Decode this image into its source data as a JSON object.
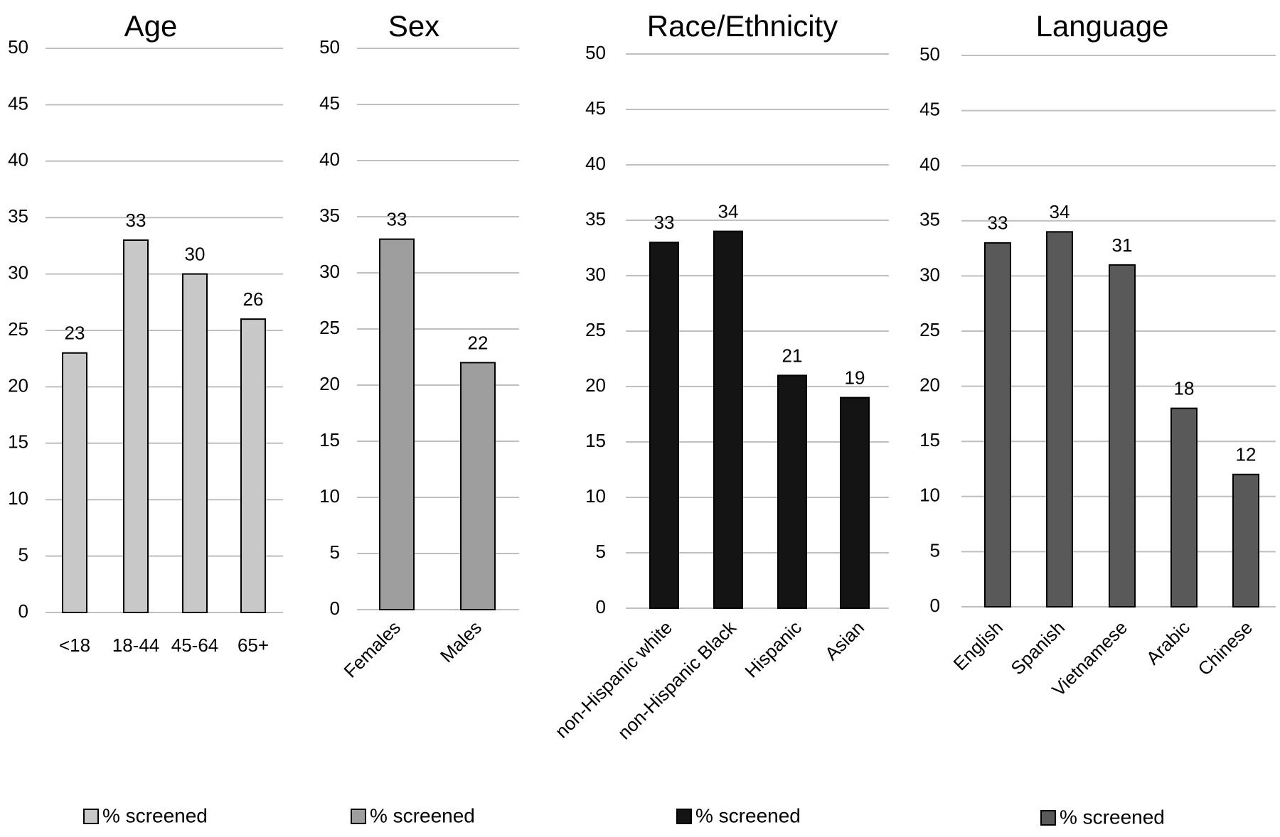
{
  "chart_data": [
    {
      "type": "bar",
      "title": "Age",
      "categories": [
        "<18",
        "18-44",
        "45-64",
        "65+"
      ],
      "series": [
        {
          "name": "% screened",
          "values": [
            23,
            33,
            30,
            26
          ],
          "color": "#c8c8c8"
        }
      ],
      "ylim": [
        0,
        50
      ],
      "yticks": [
        0,
        5,
        10,
        15,
        20,
        25,
        30,
        35,
        40,
        45,
        50
      ],
      "grid": true,
      "legend": "bottom"
    },
    {
      "type": "bar",
      "title": "Sex",
      "categories": [
        "Females",
        "Males"
      ],
      "series": [
        {
          "name": "% screened",
          "values": [
            33,
            22
          ],
          "color": "#9e9e9e"
        }
      ],
      "ylim": [
        0,
        50
      ],
      "yticks": [
        0,
        5,
        10,
        15,
        20,
        25,
        30,
        35,
        40,
        45,
        50
      ],
      "grid": true,
      "legend": "bottom"
    },
    {
      "type": "bar",
      "title": "Race/Ethnicity",
      "categories": [
        "non-Hispanic white",
        "non-Hispanic Black",
        "Hispanic",
        "Asian"
      ],
      "series": [
        {
          "name": "% screened",
          "values": [
            33,
            34,
            21,
            19
          ],
          "color": "#141414"
        }
      ],
      "ylim": [
        0,
        50
      ],
      "yticks": [
        0,
        5,
        10,
        15,
        20,
        25,
        30,
        35,
        40,
        45,
        50
      ],
      "grid": true,
      "legend": "bottom"
    },
    {
      "type": "bar",
      "title": "Language",
      "categories": [
        "English",
        "Spanish",
        "Vietnamese",
        "Arabic",
        "Chinese"
      ],
      "series": [
        {
          "name": "% screened",
          "values": [
            33,
            34,
            31,
            18,
            12
          ],
          "color": "#595959"
        }
      ],
      "ylim": [
        0,
        50
      ],
      "yticks": [
        0,
        5,
        10,
        15,
        20,
        25,
        30,
        35,
        40,
        45,
        50
      ],
      "grid": true,
      "legend": "bottom"
    }
  ]
}
